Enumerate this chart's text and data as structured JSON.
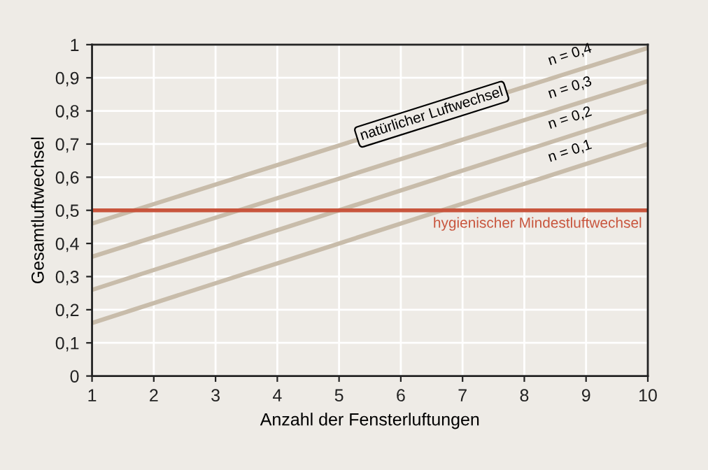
{
  "chart_data": {
    "type": "line",
    "xlabel": "Anzahl der Fensterluftungen",
    "ylabel": "Gesamtluftwechsel",
    "x": [
      1,
      10
    ],
    "series": [
      {
        "name": "n = 0,4",
        "color": "#c8bcaa",
        "values": [
          0.46,
          0.99
        ]
      },
      {
        "name": "n = 0,3",
        "color": "#c8bcaa",
        "values": [
          0.36,
          0.89
        ]
      },
      {
        "name": "n = 0,2",
        "color": "#c8bcaa",
        "values": [
          0.26,
          0.8
        ]
      },
      {
        "name": "n = 0,1",
        "color": "#c8bcaa",
        "values": [
          0.16,
          0.7
        ]
      }
    ],
    "xlim": [
      1,
      10
    ],
    "xticks": [
      1,
      2,
      3,
      4,
      5,
      6,
      7,
      8,
      9,
      10
    ],
    "ylim": [
      0,
      1
    ],
    "yticks": [
      0,
      {
        "value": 0.1,
        "label": "0,1"
      },
      {
        "value": 0.2,
        "label": "0,2"
      },
      {
        "value": 0.3,
        "label": "0,3"
      },
      {
        "value": 0.4,
        "label": "0,4"
      },
      {
        "value": 0.5,
        "label": "0,5"
      },
      {
        "value": 0.6,
        "label": "0,6"
      },
      {
        "value": 0.7,
        "label": "0,7"
      },
      {
        "value": 0.8,
        "label": "0,8"
      },
      {
        "value": 0.9,
        "label": "0,9"
      },
      1
    ],
    "ref_lines": [
      {
        "axis": "y",
        "value": 0.5,
        "label": "hygienischer Mindestluftwechsel",
        "color": "#c8553d"
      }
    ],
    "annotations": [
      {
        "text": "natürlicher Luftwechsel",
        "x": 6.5,
        "y": 0.79
      }
    ],
    "grid": true,
    "legend": false,
    "marker": "none",
    "line_style": "solid"
  }
}
